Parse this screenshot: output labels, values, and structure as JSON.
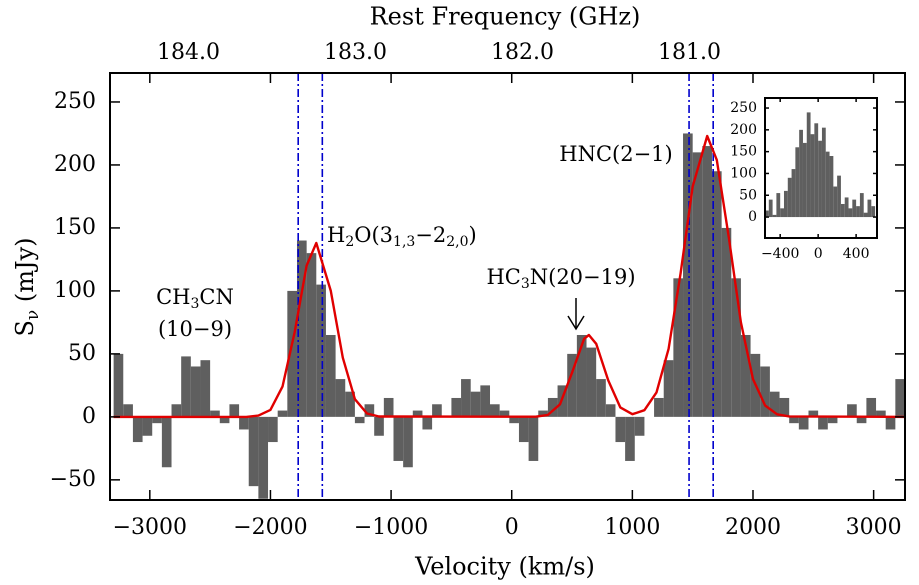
{
  "chart_data": [
    {
      "type": "histogram",
      "xlabel": "Velocity (km/s)",
      "x2label": "Rest Frequency (GHz)",
      "ylabel": [
        "S",
        "ν",
        " (mJy)"
      ],
      "color": "#5f5f5f",
      "bins": [
        -3300,
        -3220,
        -3140,
        -3060,
        -2980,
        -2900,
        -2820,
        -2740,
        -2660,
        -2580,
        -2500,
        -2420,
        -2340,
        -2260,
        -2180,
        -2100,
        -2020,
        -1940,
        -1860,
        -1780,
        -1700,
        -1620,
        -1540,
        -1460,
        -1380,
        -1300,
        -1220,
        -1140,
        -1060,
        -980,
        -900,
        -820,
        -740,
        -660,
        -580,
        -500,
        -420,
        -340,
        -260,
        -180,
        -100,
        -20,
        60,
        140,
        220,
        300,
        380,
        460,
        540,
        620,
        700,
        780,
        860,
        940,
        1020,
        1100,
        1180,
        1260,
        1340,
        1420,
        1500,
        1580,
        1660,
        1740,
        1820,
        1900,
        1980,
        2060,
        2140,
        2220,
        2300,
        2380,
        2460,
        2540,
        2620,
        2700,
        2780,
        2860,
        2940,
        3020,
        3100,
        3180,
        3260
      ],
      "values": [
        50,
        10,
        -20,
        -15,
        -5,
        -40,
        10,
        48,
        40,
        45,
        5,
        -5,
        10,
        -10,
        -55,
        -65,
        -20,
        5,
        100,
        140,
        130,
        105,
        65,
        30,
        20,
        -5,
        10,
        -15,
        15,
        -35,
        -40,
        5,
        -10,
        10,
        0,
        15,
        30,
        20,
        25,
        10,
        5,
        -5,
        -20,
        -35,
        5,
        15,
        25,
        50,
        65,
        55,
        30,
        10,
        -20,
        -35,
        -15,
        0,
        15,
        45,
        110,
        225,
        210,
        215,
        195,
        150,
        110,
        65,
        50,
        40,
        20,
        15,
        -5,
        -10,
        5,
        -10,
        -5,
        0,
        10,
        -5,
        15,
        5,
        -10,
        30
      ],
      "fit": {
        "color": "#e00000",
        "x": [
          -3300,
          -2200,
          -2100,
          -2000,
          -1900,
          -1800,
          -1700,
          -1620,
          -1500,
          -1400,
          -1300,
          -1200,
          -1100,
          200,
          300,
          400,
          500,
          600,
          640,
          700,
          800,
          900,
          1000,
          1100,
          1200,
          1300,
          1400,
          1500,
          1620,
          1700,
          1800,
          1900,
          2000,
          2100,
          2200,
          2300,
          3260
        ],
        "values": [
          0,
          0,
          1,
          5.5,
          24,
          67,
          120,
          138,
          100,
          47,
          14,
          2.7,
          0.3,
          0.1,
          1.6,
          10,
          35,
          62,
          65,
          58,
          29,
          7.5,
          2.1,
          5.3,
          19.4,
          54,
          114,
          183,
          223,
          204,
          142,
          75,
          30,
          9,
          2,
          0.4,
          0
        ]
      },
      "vlines": {
        "color": "#0000cc",
        "x": [
          -1770,
          -1570,
          1470,
          1670
        ]
      },
      "annotations": [
        [
          "CH",
          "3",
          "CN"
        ],
        [
          "(10−9)"
        ],
        [
          "H",
          "2",
          "O(3",
          "1,3",
          "−2",
          "2,0",
          ")"
        ],
        [
          "HC",
          "3",
          "N(20−19)"
        ],
        [
          "HNC(2−1)"
        ]
      ],
      "xlim": [
        -3330,
        3260
      ],
      "xticks": [
        {
          "value": -3000,
          "label": "−3000"
        },
        {
          "value": -2000,
          "label": "−2000"
        },
        {
          "value": -1000,
          "label": "−1000"
        },
        0,
        1000,
        2000,
        3000
      ],
      "x2lim": [
        184.47,
        179.71
      ],
      "x2ticks": [
        {
          "value": 184.0,
          "label": "184.0"
        },
        {
          "value": 183.0,
          "label": "183.0"
        },
        {
          "value": 182.0,
          "label": "182.0"
        },
        {
          "value": 181.0,
          "label": "181.0"
        }
      ],
      "ylim": [
        -66,
        273
      ],
      "yticks": [
        {
          "value": -50,
          "label": "−50"
        },
        0,
        50,
        100,
        150,
        200,
        250
      ]
    },
    {
      "type": "histogram",
      "color": "#5f5f5f",
      "bins": [
        -560,
        -520,
        -480,
        -440,
        -400,
        -360,
        -320,
        -280,
        -240,
        -200,
        -160,
        -120,
        -80,
        -40,
        0,
        40,
        80,
        120,
        160,
        200,
        240,
        280,
        320,
        360,
        400,
        440,
        480,
        520,
        560,
        600
      ],
      "values": [
        15,
        40,
        5,
        55,
        20,
        60,
        90,
        110,
        160,
        200,
        170,
        240,
        190,
        215,
        175,
        205,
        150,
        140,
        70,
        95,
        30,
        45,
        20,
        40,
        25,
        55,
        10,
        40,
        25
      ],
      "xlim": [
        -560,
        620
      ],
      "xticks": [
        {
          "value": -400,
          "label": "−400"
        },
        0,
        400
      ],
      "ylim": [
        -48,
        273
      ],
      "yticks": [
        0,
        50,
        100,
        150,
        200,
        250
      ]
    }
  ]
}
